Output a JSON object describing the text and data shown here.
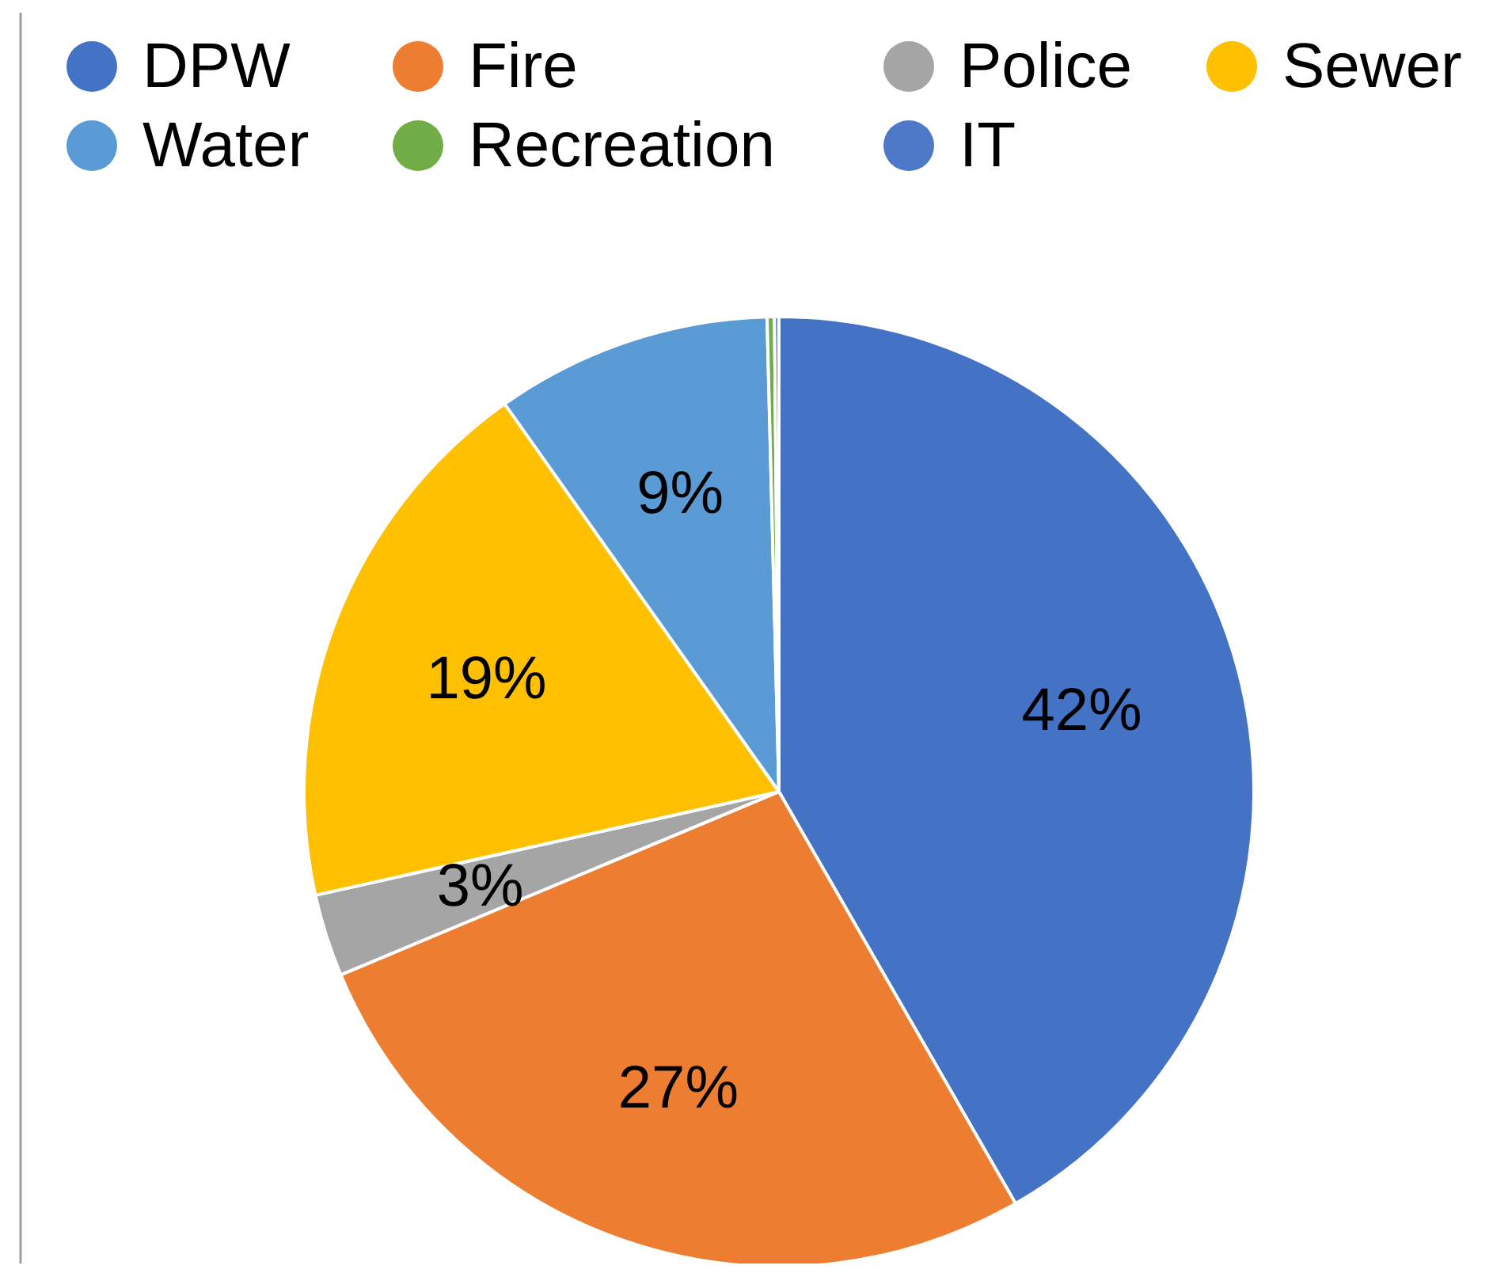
{
  "chart_data": {
    "type": "pie",
    "categories": [
      "DPW",
      "Fire",
      "Police",
      "Sewer",
      "Water",
      "Recreation",
      "IT"
    ],
    "values": [
      41.7,
      27.0,
      2.8,
      18.7,
      9.4,
      0.25,
      0.15
    ],
    "colors": [
      "#4472c4",
      "#ed7d31",
      "#a5a5a5",
      "#ffc000",
      "#5b9bd5",
      "#70ad47",
      "#4e79c8"
    ],
    "value_labels": [
      "42%",
      "27%",
      "3%",
      "19%",
      "9%",
      null,
      null
    ],
    "legend": "top"
  }
}
